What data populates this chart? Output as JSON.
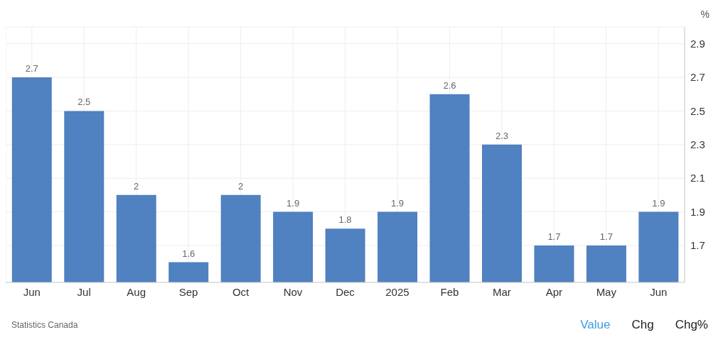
{
  "chart_data": {
    "type": "bar",
    "ylabel": "%",
    "categories": [
      "Jun",
      "Jul",
      "Aug",
      "Sep",
      "Oct",
      "Nov",
      "Dec",
      "2025",
      "Feb",
      "Mar",
      "Apr",
      "May",
      "Jun"
    ],
    "values": [
      2.7,
      2.5,
      2,
      1.6,
      2,
      1.9,
      1.8,
      1.9,
      2.6,
      2.3,
      1.7,
      1.7,
      1.9
    ],
    "color": "#5081c0",
    "ylim": [
      1.48,
      3.0
    ],
    "yticks": [
      1.7,
      1.9,
      2.1,
      2.3,
      2.5,
      2.7,
      2.9
    ],
    "grid": true,
    "data_labels": true,
    "annotations": [
      "Statistics Canada",
      "Value",
      "Chg",
      "Chg%"
    ]
  }
}
